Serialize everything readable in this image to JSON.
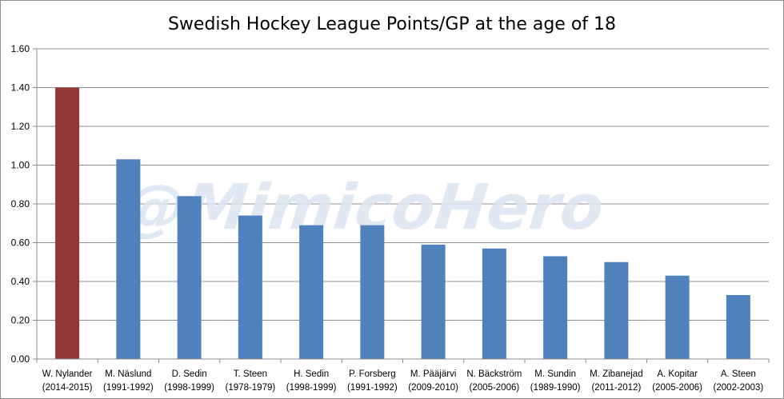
{
  "chart_data": {
    "type": "bar",
    "title": "Swedish Hockey League Points/GP at the age of 18",
    "watermark": "@MimicoHero",
    "xlabel": "",
    "ylabel": "",
    "ylim": [
      0,
      1.6
    ],
    "yticks": [
      "0.00",
      "0.20",
      "0.40",
      "0.60",
      "0.80",
      "1.00",
      "1.20",
      "1.40",
      "1.60"
    ],
    "grid": true,
    "legend": "none",
    "categories": [
      {
        "name": "W. Nylander",
        "season": "(2014-2015)"
      },
      {
        "name": "M. Näslund",
        "season": "(1991-1992)"
      },
      {
        "name": "D. Sedin",
        "season": "(1998-1999)"
      },
      {
        "name": "T. Steen",
        "season": "(1978-1979)"
      },
      {
        "name": "H. Sedin",
        "season": "(1998-1999)"
      },
      {
        "name": "P. Forsberg",
        "season": "(1991-1992)"
      },
      {
        "name": "M. Pääjärvi",
        "season": "(2009-2010)"
      },
      {
        "name": "N. Bäckström",
        "season": "(2005-2006)"
      },
      {
        "name": "M. Sundin",
        "season": "(1989-1990)"
      },
      {
        "name": "M. Zibanejad",
        "season": "(2011-2012)"
      },
      {
        "name": "A. Kopitar",
        "season": "(2005-2006)"
      },
      {
        "name": "A. Steen",
        "season": "(2002-2003)"
      }
    ],
    "values": [
      1.4,
      1.03,
      0.84,
      0.74,
      0.69,
      0.69,
      0.59,
      0.57,
      0.53,
      0.5,
      0.43,
      0.33
    ],
    "colors": {
      "highlight": "#943634",
      "default": "#4f81bd",
      "grid": "#8c8c8c",
      "axis": "#8c8c8c",
      "watermark": "#dbe5f1"
    },
    "highlight_index": 0
  }
}
